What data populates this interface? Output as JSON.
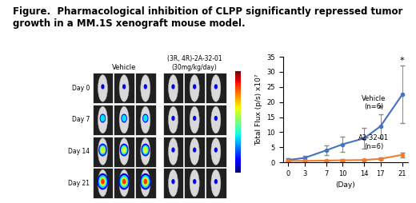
{
  "title": "Figure.  Pharmacological inhibition of CLPP significantly repressed tumor growth in a MM.1S xenograft mouse model.",
  "image_panel": {
    "groups": [
      "Vehicle",
      "(3R, 4R)-2A-32-01\n(30mg/kg/day)"
    ],
    "rows": [
      "Day 0",
      "Day 7",
      "Day 14",
      "Day 21"
    ]
  },
  "chart_data": {
    "type": "line",
    "x_label": "(Day)",
    "y_label": "Total Flux (p/s) x10⁷",
    "x": [
      0,
      3,
      7,
      10,
      14,
      17,
      21
    ],
    "series": [
      {
        "name": "Vehicle\n(n=6)",
        "color": "#4472c4",
        "marker": "o",
        "values": [
          0.8,
          1.5,
          4,
          6,
          8,
          12,
          22.5
        ],
        "errors": [
          0.5,
          0.8,
          1.5,
          2.5,
          3.5,
          4,
          9.5
        ]
      },
      {
        "name": "A2-32-01\n(n=6)",
        "color": "#ed7d31",
        "marker": "o",
        "values": [
          0.5,
          0.5,
          0.6,
          0.7,
          0.8,
          1.2,
          2.5
        ],
        "errors": [
          0.2,
          0.2,
          0.2,
          0.3,
          0.3,
          0.4,
          0.8
        ]
      }
    ],
    "annotations": [
      {
        "text": "*",
        "x": 17,
        "y": 16.5
      },
      {
        "text": "*",
        "x": 21,
        "y": 32.5
      }
    ],
    "xlim": [
      -1,
      22
    ],
    "xticks": [
      0,
      3,
      7,
      10,
      14,
      17,
      21
    ],
    "ylim": [
      0,
      35
    ],
    "yticks": [
      0,
      5,
      10,
      15,
      20,
      25,
      30,
      35
    ],
    "grid": false
  }
}
